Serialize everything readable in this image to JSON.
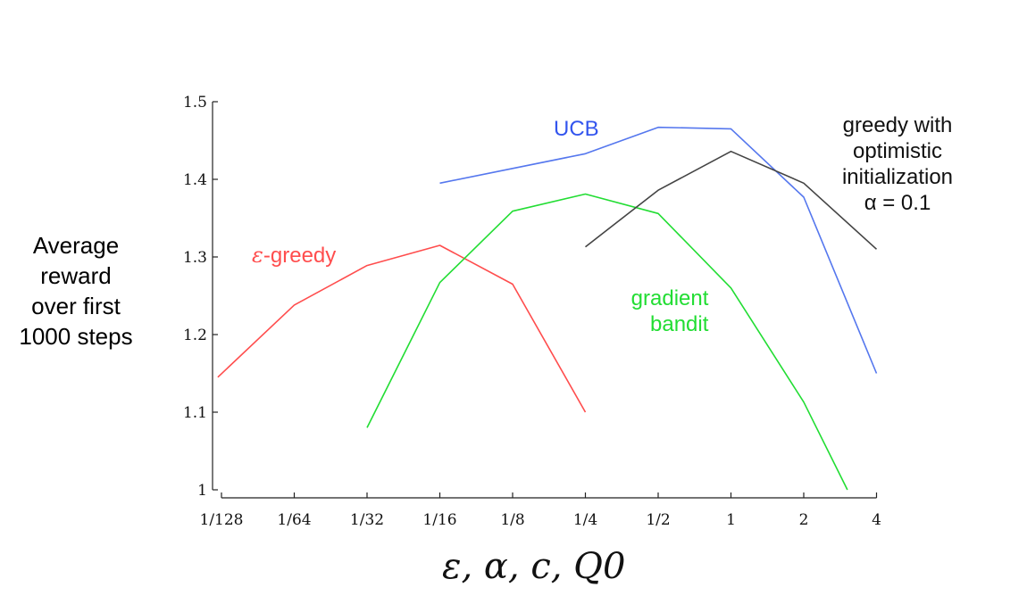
{
  "chart_data": {
    "type": "line",
    "x_categories": [
      "1/128",
      "1/64",
      "1/32",
      "1/16",
      "1/8",
      "1/4",
      "1/2",
      "1",
      "2",
      "4"
    ],
    "y_ticks": [
      "1",
      "1.1",
      "1.2",
      "1.3",
      "1.4",
      "1.5"
    ],
    "ylim": [
      1,
      1.5
    ],
    "ylabel": [
      "Average",
      "reward",
      "over first",
      "1000 steps"
    ],
    "xlabel": "ε,  α,  c,  Q0",
    "grid": false,
    "series": [
      {
        "name": "ε-greedy",
        "color": "#ff4d4d",
        "points": [
          [
            -0.05,
            1.145
          ],
          [
            1,
            1.238
          ],
          [
            2,
            1.289
          ],
          [
            3,
            1.315
          ],
          [
            4,
            1.265
          ],
          [
            5,
            1.1
          ]
        ]
      },
      {
        "name": "UCB",
        "color": "#5577ee",
        "points": [
          [
            3,
            1.395
          ],
          [
            5,
            1.433
          ],
          [
            6,
            1.467
          ],
          [
            7,
            1.465
          ],
          [
            8,
            1.377
          ],
          [
            9,
            1.15
          ]
        ]
      },
      {
        "name": "gradient bandit",
        "color": "#22dd33",
        "points": [
          [
            2,
            1.08
          ],
          [
            3,
            1.267
          ],
          [
            4,
            1.359
          ],
          [
            5,
            1.381
          ],
          [
            6,
            1.356
          ],
          [
            7,
            1.26
          ],
          [
            8,
            1.113
          ],
          [
            8.6,
            1.0
          ]
        ]
      },
      {
        "name": "greedy with optimistic initialization α = 0.1",
        "color": "#444444",
        "points": [
          [
            5,
            1.313
          ],
          [
            6,
            1.386
          ],
          [
            7,
            1.436
          ],
          [
            8,
            1.395
          ],
          [
            9,
            1.31
          ]
        ]
      }
    ],
    "annotations": {
      "eps_greedy": "-greedy",
      "eps_symbol": "ε",
      "ucb": "UCB",
      "gradient_line1": "gradient",
      "gradient_line2": "bandit",
      "optimistic_line1": "greedy with",
      "optimistic_line2": "optimistic",
      "optimistic_line3": "initialization",
      "optimistic_line4": "α = 0.1"
    }
  }
}
